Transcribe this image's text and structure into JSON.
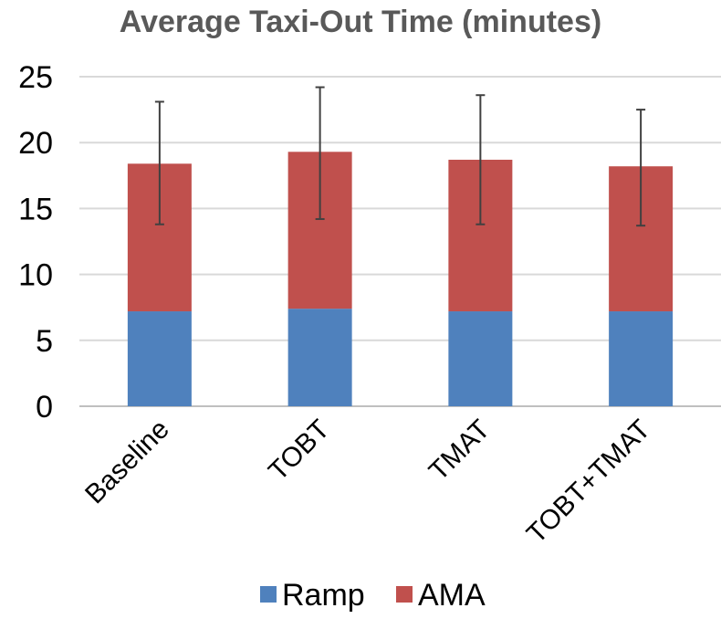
{
  "chart_data": {
    "type": "bar",
    "stacked": true,
    "title": "Average Taxi-Out Time (minutes)",
    "xlabel": "",
    "ylabel": "",
    "categories": [
      "Baseline",
      "TOBT",
      "TMAT",
      "TOBT+TMAT"
    ],
    "series": [
      {
        "name": "Ramp",
        "color": "#4F81BD",
        "values": [
          7.2,
          7.4,
          7.2,
          7.2
        ]
      },
      {
        "name": "AMA",
        "color": "#C0504D",
        "values": [
          11.2,
          11.9,
          11.5,
          11.0
        ]
      }
    ],
    "error_bars": {
      "low": [
        13.8,
        14.2,
        13.8,
        13.7
      ],
      "high": [
        23.1,
        24.2,
        23.6,
        22.5
      ]
    },
    "ylim": [
      0,
      25
    ],
    "yticks": [
      "0",
      "5",
      "10",
      "15",
      "20",
      "25"
    ],
    "grid": true,
    "legend_position": "bottom"
  }
}
